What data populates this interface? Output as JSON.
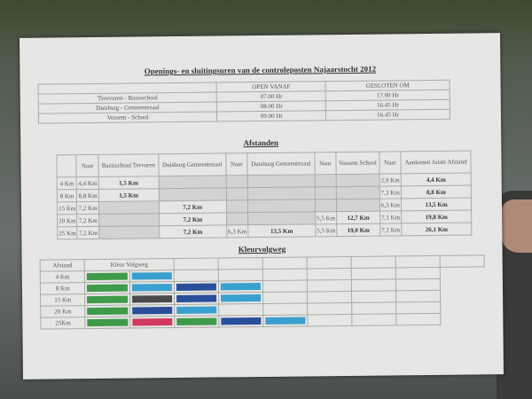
{
  "title": "Openings- en sluitingsuren van de controleposten Najaarstocht 2012",
  "hours": {
    "headers": [
      "",
      "OPEN VANAF",
      "GESLOTEN OM"
    ],
    "rows": [
      [
        "Tyervuren - Basisschool",
        "07.00 Hr",
        "17.00 Hr"
      ],
      [
        "Duisburg - Gemeentezaal",
        "08.00 Hr",
        "16.45 Hr"
      ],
      [
        "Vossem - School",
        "09.00 Hr",
        "16.45 Hr"
      ]
    ]
  },
  "afstanden": {
    "title": "Afstanden",
    "headers": [
      "",
      "Naar",
      "Basisschool Tervuren",
      "Duisburg Gemeentezaal",
      "Naar",
      "Duisburg Gemeentezaal",
      "Naar",
      "Vossem School",
      "Naar",
      "Aankomst Juiste Afstand"
    ],
    "rows": [
      [
        "4 Km",
        "4,4 Km",
        "1,5 Km",
        "",
        "",
        "",
        "",
        "",
        "2,9 Km",
        "4,4 Km"
      ],
      [
        "8 Km",
        "8,8 Km",
        "1,5 Km",
        "",
        "",
        "",
        "",
        "",
        "7,3 Km",
        "8,8 Km"
      ],
      [
        "15 Km",
        "7,2 Km",
        "",
        "7,2 Km",
        "",
        "",
        "",
        "",
        "6,3 Km",
        "13,5 Km"
      ],
      [
        "20 Km",
        "7,2 Km",
        "",
        "7,2 Km",
        "",
        "",
        "5,5 Km",
        "12,7 Km",
        "7,1 Km",
        "19,8 Km"
      ],
      [
        "25 Km",
        "7,2 Km",
        "",
        "7,2 Km",
        "6,3 Km",
        "13,5 Km",
        "5,5 Km",
        "19,0 Km",
        "7,1 Km",
        "26,1 Km"
      ]
    ]
  },
  "kleur": {
    "title": "Kleurvolgweg",
    "header_afstand": "Afstand",
    "header_kleur": "Kleur Volgweg",
    "colors": {
      "green": "#3f9a4a",
      "lightblue": "#3aa0d0",
      "darkblue": "#2a4f9a",
      "gray": "#4a4a48",
      "pink": "#d03a60"
    },
    "rows": [
      {
        "label": "4 Km",
        "swatches": [
          "green",
          "lightblue"
        ]
      },
      {
        "label": "8 Km",
        "swatches": [
          "green",
          "lightblue",
          "darkblue",
          "lightblue"
        ]
      },
      {
        "label": "15 Km",
        "swatches": [
          "green",
          "gray",
          "darkblue",
          "lightblue"
        ]
      },
      {
        "label": "20 Km",
        "swatches": [
          "green",
          "darkblue",
          "lightblue"
        ]
      },
      {
        "label": "25Km",
        "swatches": [
          "green",
          "pink",
          "green",
          "darkblue",
          "lightblue"
        ]
      }
    ]
  }
}
